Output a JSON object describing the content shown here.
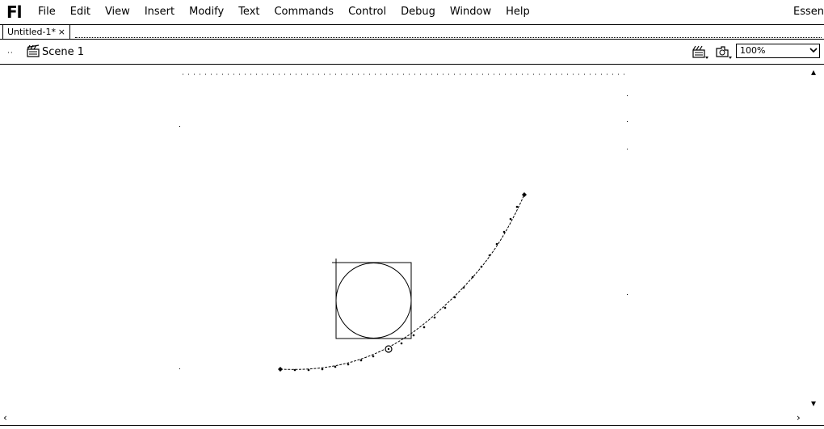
{
  "app": {
    "logo": "Fl",
    "workspace": "Essentials"
  },
  "menu": [
    "File",
    "Edit",
    "View",
    "Insert",
    "Modify",
    "Text",
    "Commands",
    "Control",
    "Debug",
    "Window",
    "Help"
  ],
  "document_tab": {
    "title": "Untitled-1*",
    "close": "×"
  },
  "edit_bar": {
    "back": "··",
    "scene": "Scene 1",
    "zoom": "100%"
  },
  "scroll": {
    "up": "▴",
    "down": "▾",
    "left": "‹",
    "right": "›"
  },
  "icons": [
    "clapper-icon",
    "edit-scene-icon",
    "edit-symbol-icon",
    "chevron-down-icon"
  ]
}
